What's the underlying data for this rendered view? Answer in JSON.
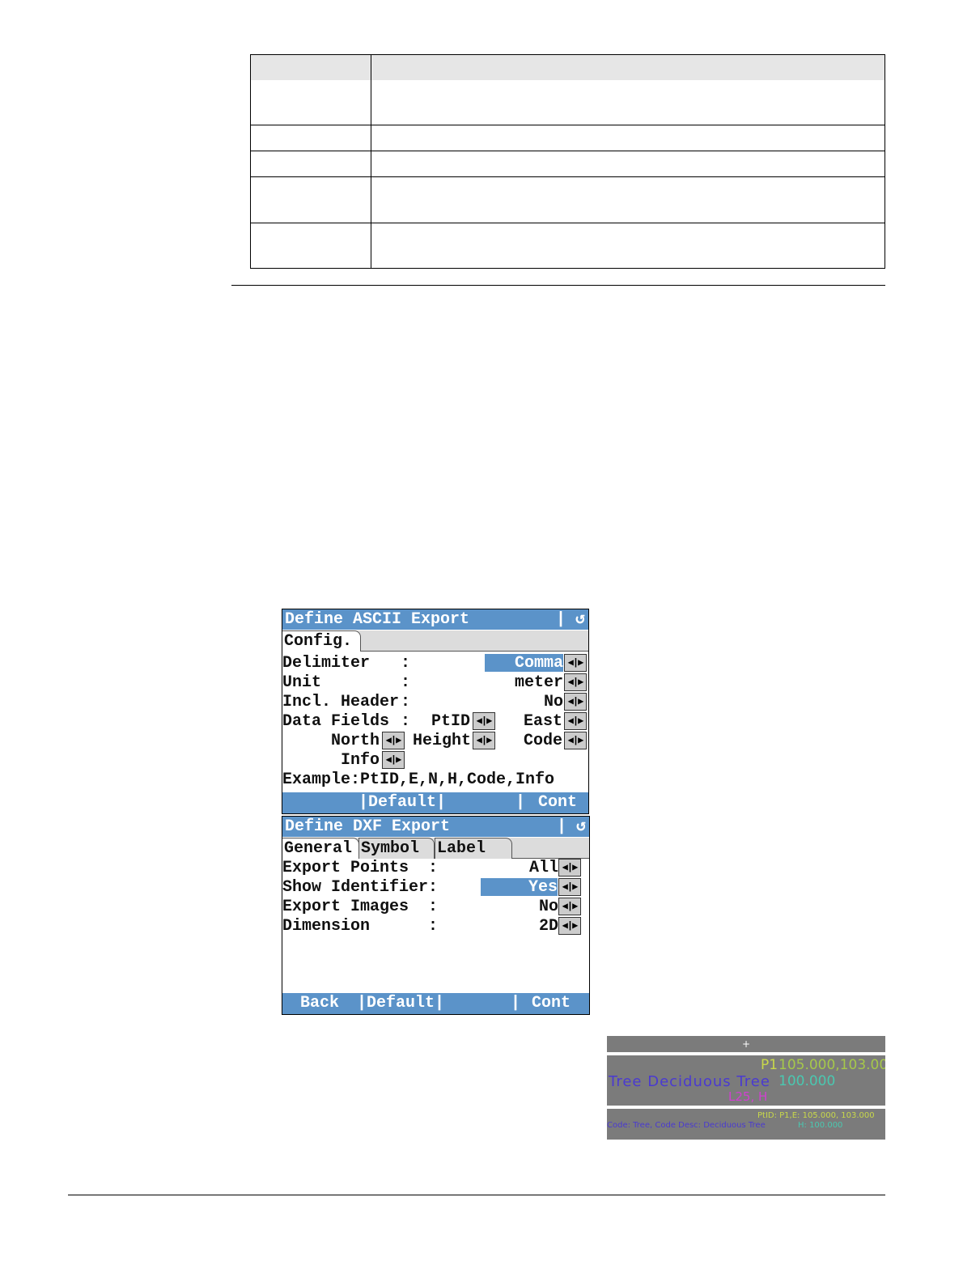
{
  "ascii_screen": {
    "title": "Define ASCII Export",
    "back_icon": "return-arrow-icon",
    "tab": "Config.",
    "rows": {
      "delimiter_label": "Delimiter",
      "delimiter_value": "Comma",
      "unit_label": "Unit",
      "unit_value": "meter",
      "header_label": "Incl. Header",
      "header_value": "No",
      "fields_label": "Data Fields",
      "f1": "PtID",
      "f2": "East",
      "f3": "North",
      "f4": "Height",
      "f5": "Code",
      "f6": "Info",
      "example": "Example:PtID,E,N,H,Code,Info",
      "colon": ":"
    },
    "footer": {
      "default": "|Default|",
      "sep": "|",
      "cont": "Cont"
    }
  },
  "dxf_screen": {
    "title": "Define DXF Export",
    "back_icon": "return-arrow-icon",
    "tabs": [
      "General",
      "Symbol",
      "Label"
    ],
    "rows": [
      {
        "label": "Export Points",
        "value": "All"
      },
      {
        "label": "Show Identifier",
        "value": "Yes"
      },
      {
        "label": "Export Images",
        "value": "No"
      },
      {
        "label": "Dimension",
        "value": "2D"
      }
    ],
    "colon": ":",
    "footer": {
      "back": "Back",
      "default": "|Default|",
      "sep": "|",
      "cont": "Cont"
    }
  },
  "cad_preview": {
    "point_id": "P1",
    "coords": "105.000,103.000",
    "height": "100.000",
    "code_text": "Tree  Deciduous  Tree",
    "extra": "L25, H",
    "small_line1": "PtID: P1,E: 105.000, 103.000",
    "small_line2": "Code: Tree, Code Desc: Deciduous Tree",
    "small_height": "H: 100.000"
  },
  "colors": {
    "title_bar": "#5b93c9",
    "cad_bg": "#7b7b7b"
  }
}
